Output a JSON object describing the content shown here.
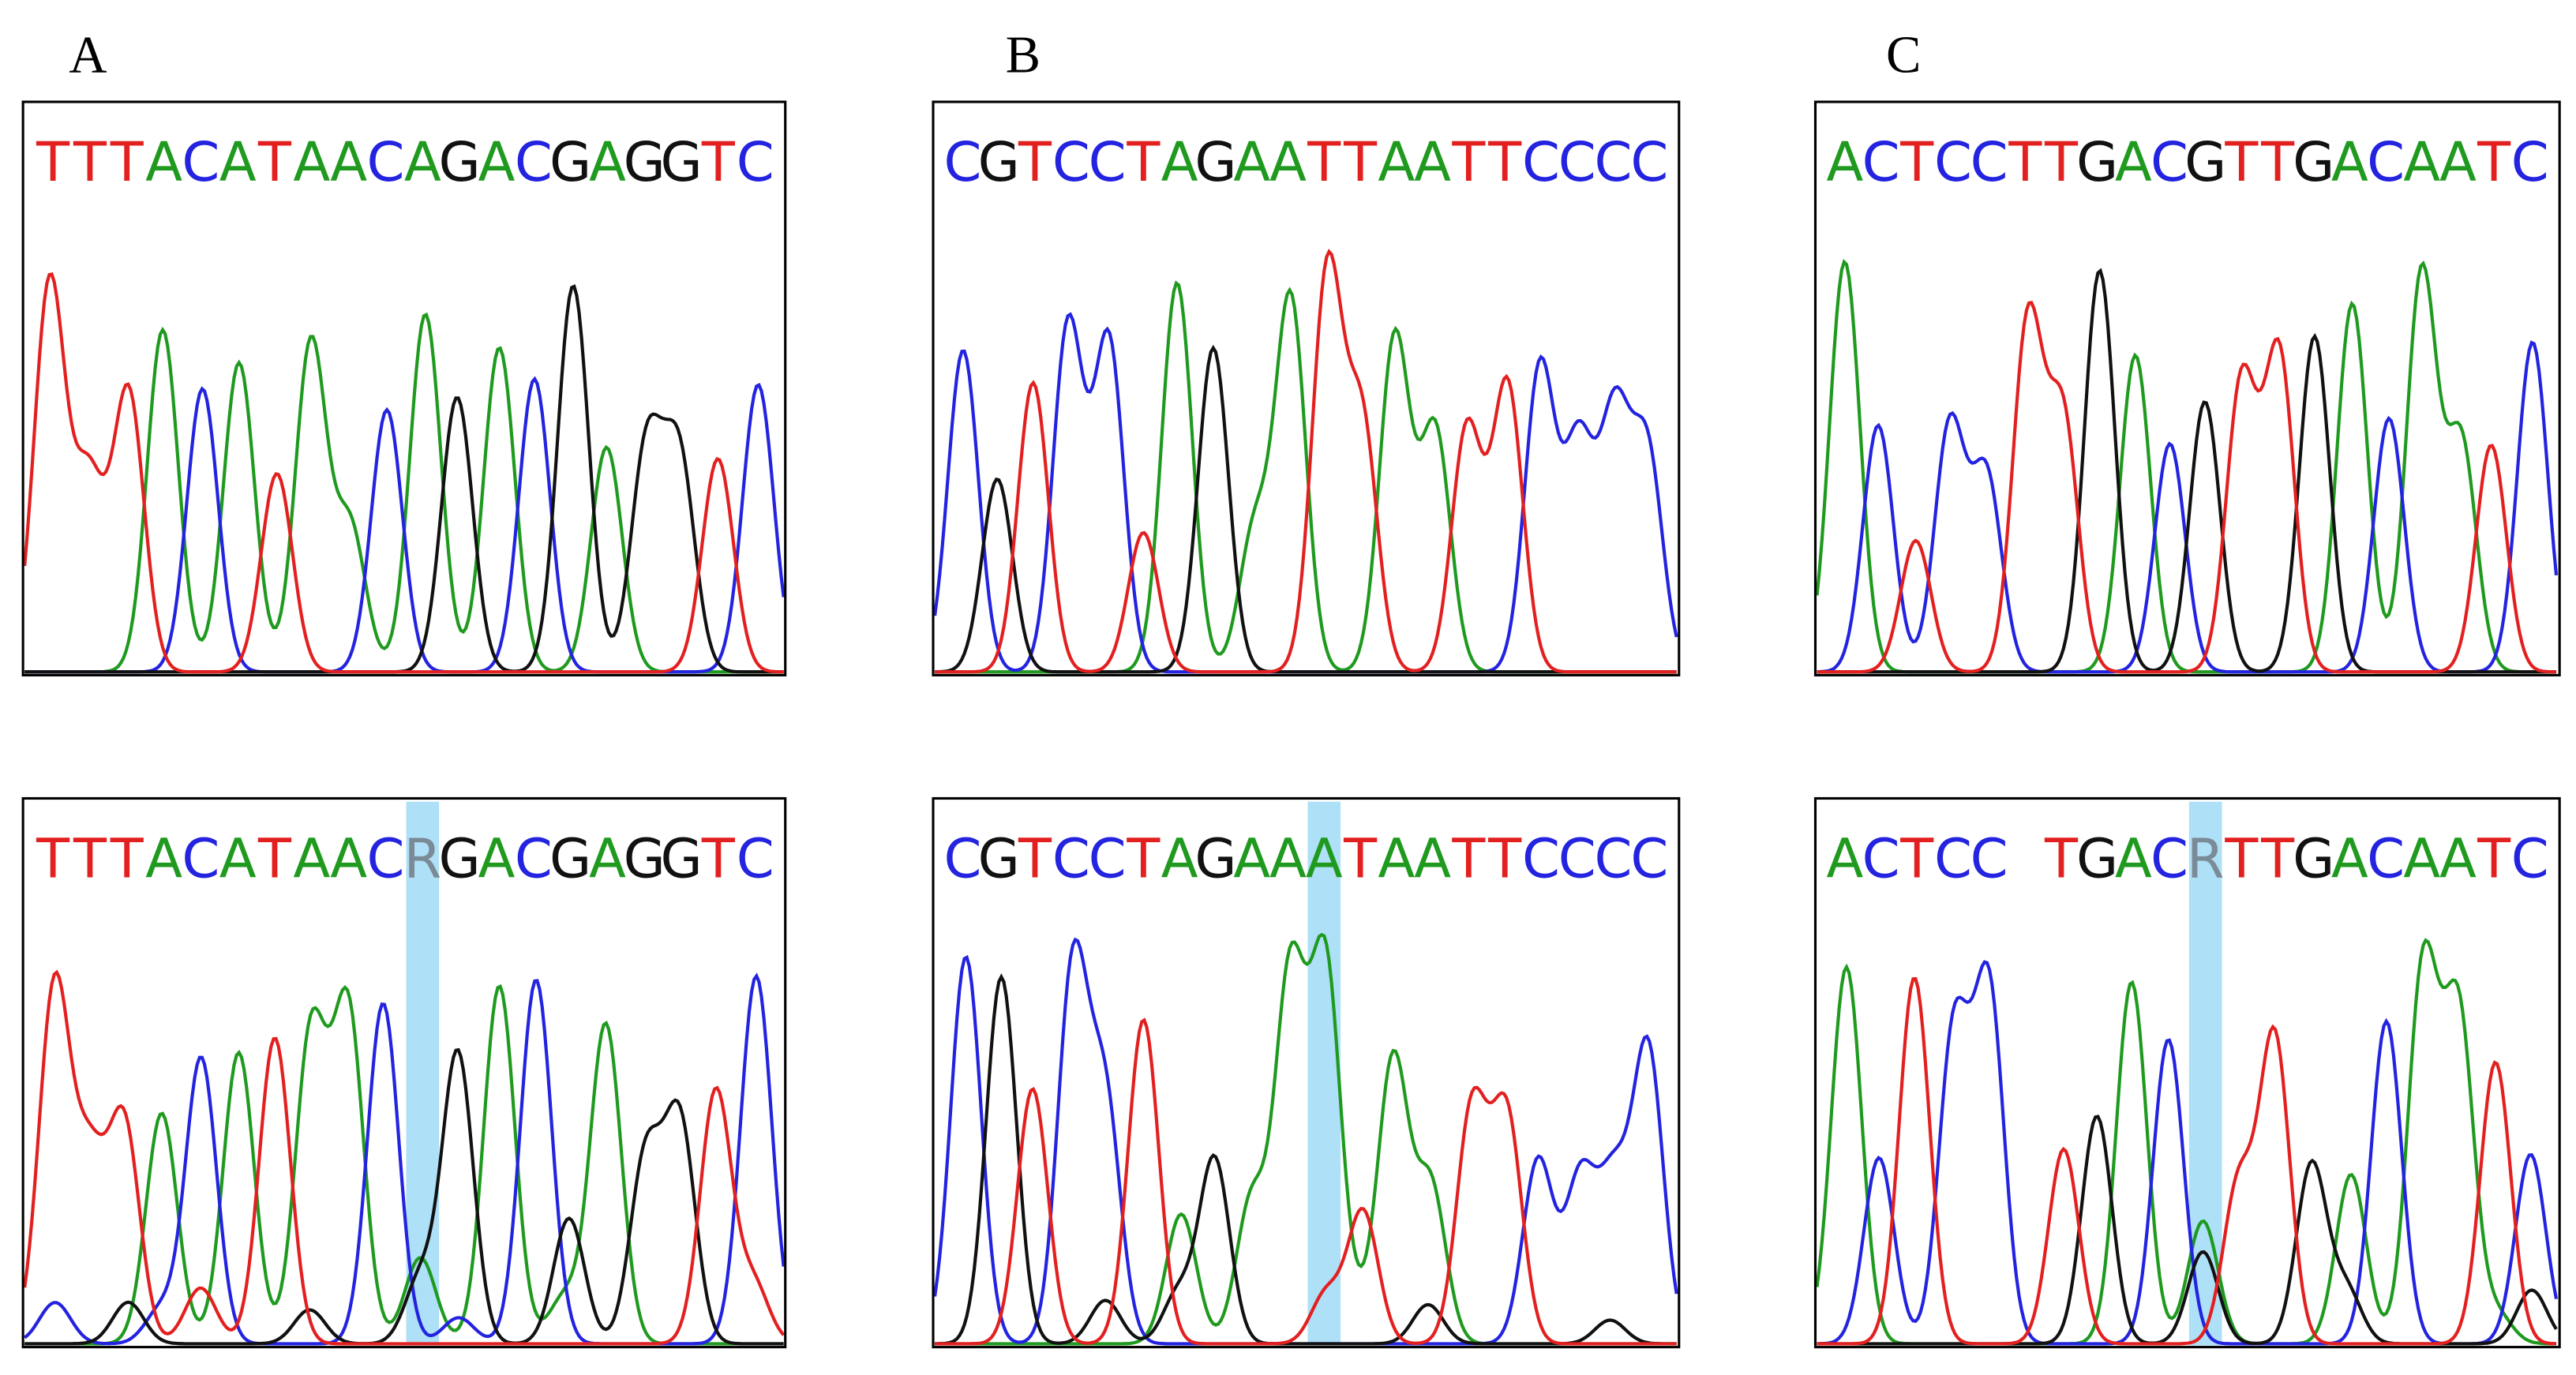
{
  "panels": [
    {
      "label": "A",
      "top": {
        "bases": [
          "T",
          "T",
          "T",
          "A",
          "C",
          "A",
          "T",
          "A",
          "A",
          "C",
          "A",
          "G",
          "A",
          "C",
          "G",
          "A",
          "G",
          "G",
          "T",
          "C"
        ]
      },
      "bottom": {
        "bases": [
          "T",
          "T",
          "T",
          "A",
          "C",
          "A",
          "T",
          "A",
          "A",
          "C",
          "R",
          "G",
          "A",
          "C",
          "G",
          "A",
          "G",
          "G",
          "T",
          "C"
        ]
      }
    },
    {
      "label": "B",
      "top": {
        "bases": [
          "C",
          "G",
          "T",
          "C",
          "C",
          "T",
          "A",
          "G",
          "A",
          "A",
          "T",
          "T",
          "A",
          "A",
          "T",
          "T",
          "C",
          "C",
          "C",
          "C"
        ]
      },
      "bottom": {
        "bases": [
          "C",
          "G",
          "T",
          "C",
          "C",
          "T",
          "A",
          "G",
          "A",
          "A",
          "A",
          "T",
          "A",
          "A",
          "T",
          "T",
          "C",
          "C",
          "C",
          "C"
        ]
      }
    },
    {
      "label": "C",
      "top": {
        "bases": [
          "A",
          "C",
          "T",
          "C",
          "C",
          "T",
          "T",
          "G",
          "A",
          "C",
          "G",
          "T",
          "T",
          "G",
          "A",
          "C",
          "A",
          "A",
          "T",
          "C"
        ]
      },
      "bottom": {
        "bases": [
          "A",
          "C",
          "T",
          "C",
          "C",
          "T",
          "G",
          "A",
          "C",
          "R",
          "T",
          "T",
          "G",
          "A",
          "C",
          "A",
          "A",
          "T",
          "C"
        ]
      }
    }
  ],
  "base_colors": {
    "A": "#1f9a1f",
    "C": "#2323e0",
    "G": "#111111",
    "T": "#e32020",
    "R": "#7a8a96"
  }
}
